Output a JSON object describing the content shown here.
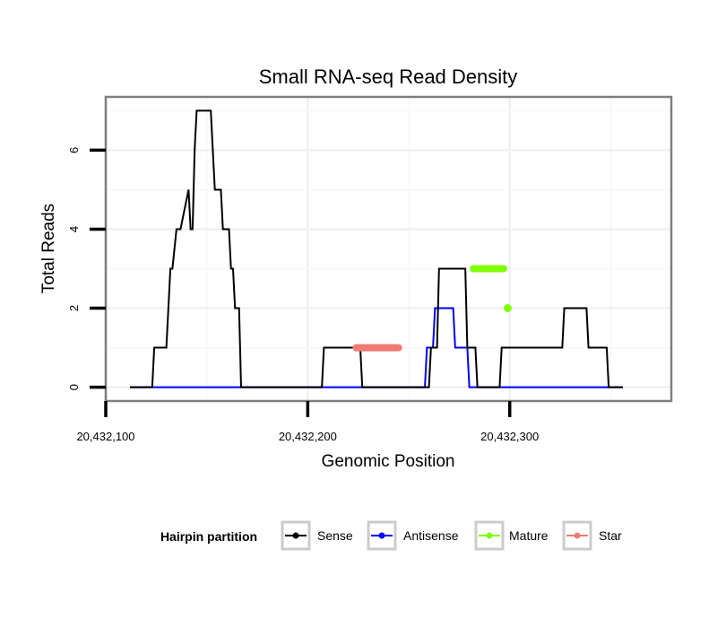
{
  "chart_data": {
    "type": "line",
    "title": "Small RNA-seq Read Density",
    "xlabel": "Genomic Position",
    "ylabel": "Total Reads",
    "xlim": [
      20432100,
      20432380
    ],
    "ylim": [
      -0.35,
      7.35
    ],
    "x_ticks": [
      20432100,
      20432200,
      20432300
    ],
    "x_tick_labels": [
      "20,432,100",
      "20,432,200",
      "20,432,300"
    ],
    "y_ticks": [
      0,
      2,
      4,
      6
    ],
    "y_tick_labels": [
      "0",
      "2",
      "4",
      "6"
    ],
    "grid": true,
    "legend": {
      "title": "Hairpin partition",
      "position": "bottom",
      "entries": [
        {
          "name": "Sense",
          "color": "#000000"
        },
        {
          "name": "Antisense",
          "color": "#0000ff"
        },
        {
          "name": "Mature",
          "color": "#7fff00"
        },
        {
          "name": "Star",
          "color": "#f07b72"
        }
      ]
    },
    "series": [
      {
        "name": "Sense",
        "color": "#000000",
        "kind": "line",
        "x": [
          20432112,
          20432123,
          20432124,
          20432130,
          20432132,
          20432133,
          20432135,
          20432137,
          20432141,
          20432142,
          20432143,
          20432144,
          20432145,
          20432146,
          20432147,
          20432152,
          20432153,
          20432154,
          20432157,
          20432158,
          20432160,
          20432161,
          20432162,
          20432163,
          20432164,
          20432166,
          20432167,
          20432207,
          20432208,
          20432226,
          20432227,
          20432260,
          20432261,
          20432264,
          20432265,
          20432278,
          20432279,
          20432283,
          20432284,
          20432295,
          20432296,
          20432326,
          20432327,
          20432338,
          20432339,
          20432348,
          20432349,
          20432352,
          20432353,
          20432356
        ],
        "y": [
          0,
          0,
          1,
          1,
          3,
          3,
          4,
          4,
          5,
          4,
          4,
          6,
          7,
          7,
          7,
          7,
          6,
          5,
          5,
          4,
          4,
          4,
          3,
          3,
          2,
          2,
          0,
          0,
          1,
          1,
          0,
          0,
          1,
          1,
          3,
          3,
          1,
          1,
          0,
          0,
          1,
          1,
          2,
          2,
          1,
          1,
          0,
          0,
          0,
          0
        ]
      },
      {
        "name": "Antisense",
        "color": "#0000ff",
        "kind": "line",
        "x": [
          20432112,
          20432258,
          20432259,
          20432262,
          20432263,
          20432272,
          20432273,
          20432279,
          20432280,
          20432346,
          20432347,
          20432356
        ],
        "y": [
          0,
          0,
          1,
          1,
          2,
          2,
          1,
          1,
          0,
          0,
          0,
          0
        ]
      },
      {
        "name": "Star",
        "color": "#f07b72",
        "kind": "segment",
        "x": [
          20432224,
          20432245
        ],
        "y": [
          1,
          1
        ]
      },
      {
        "name": "Mature",
        "color": "#7fff00",
        "kind": "segment",
        "x": [
          20432282,
          20432297
        ],
        "y": [
          3,
          3
        ]
      },
      {
        "name": "Mature",
        "color": "#7fff00",
        "kind": "point",
        "x": [
          20432299
        ],
        "y": [
          2
        ]
      }
    ]
  }
}
